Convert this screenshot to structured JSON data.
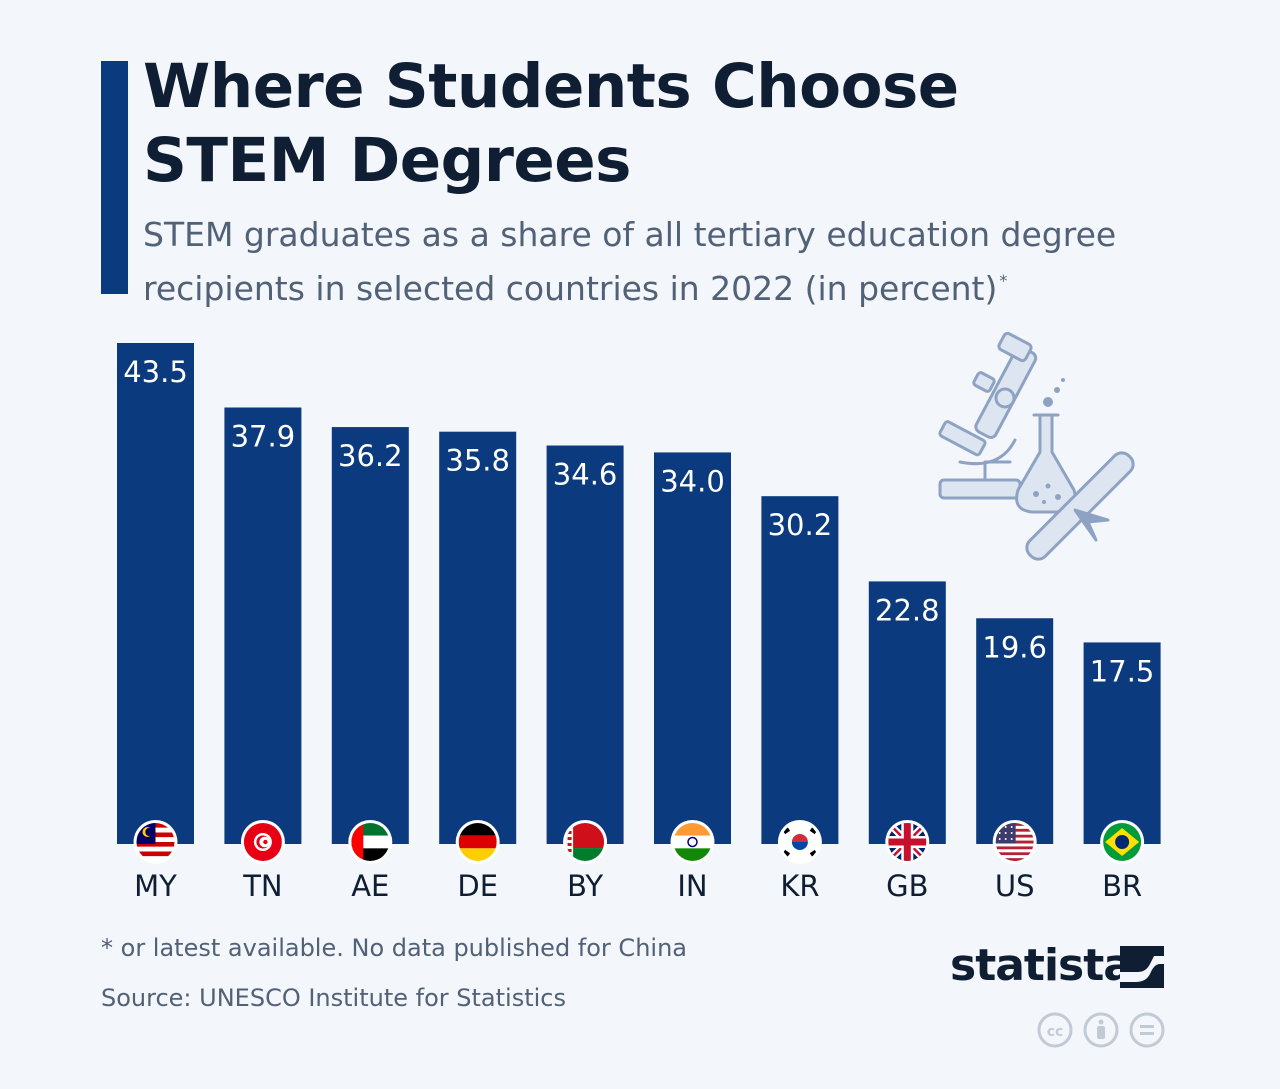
{
  "header": {
    "title": "Where Students Choose STEM Degrees",
    "subtitle": "STEM graduates as a share of all tertiary education degree recipients in selected countries in 2022 (in percent)",
    "subtitle_marker": "*"
  },
  "footer": {
    "footnote": "* or latest available. No data published for China",
    "source": "Source: UNESCO Institute for Statistics",
    "brand": "statista"
  },
  "icons": [
    "microscope-icon",
    "flask-icon",
    "diploma-icon",
    "creative-commons-icon",
    "attribution-icon",
    "no-derivatives-icon"
  ],
  "colors": {
    "bar": "#0b3a7e",
    "background": "#f3f6fa",
    "title": "#0f1e33",
    "text": "#516177",
    "icon": "#8ea3c4"
  },
  "chart_data": {
    "type": "bar",
    "categories": [
      "MY",
      "TN",
      "AE",
      "DE",
      "BY",
      "IN",
      "KR",
      "GB",
      "US",
      "BR"
    ],
    "values": [
      43.5,
      37.9,
      36.2,
      35.8,
      34.6,
      34.0,
      30.2,
      22.8,
      19.6,
      17.5
    ],
    "value_labels": [
      "43.5",
      "37.9",
      "36.2",
      "35.8",
      "34.6",
      "34.0",
      "30.2",
      "22.8",
      "19.6",
      "17.5"
    ],
    "flags": [
      "malaysia-flag-icon",
      "tunisia-flag-icon",
      "uae-flag-icon",
      "germany-flag-icon",
      "belarus-flag-icon",
      "india-flag-icon",
      "south-korea-flag-icon",
      "uk-flag-icon",
      "usa-flag-icon",
      "brazil-flag-icon"
    ],
    "title": "Where Students Choose STEM Degrees",
    "xlabel": "",
    "ylabel": "",
    "ylim": [
      0,
      43.5
    ],
    "grid": false,
    "legend": "none"
  }
}
